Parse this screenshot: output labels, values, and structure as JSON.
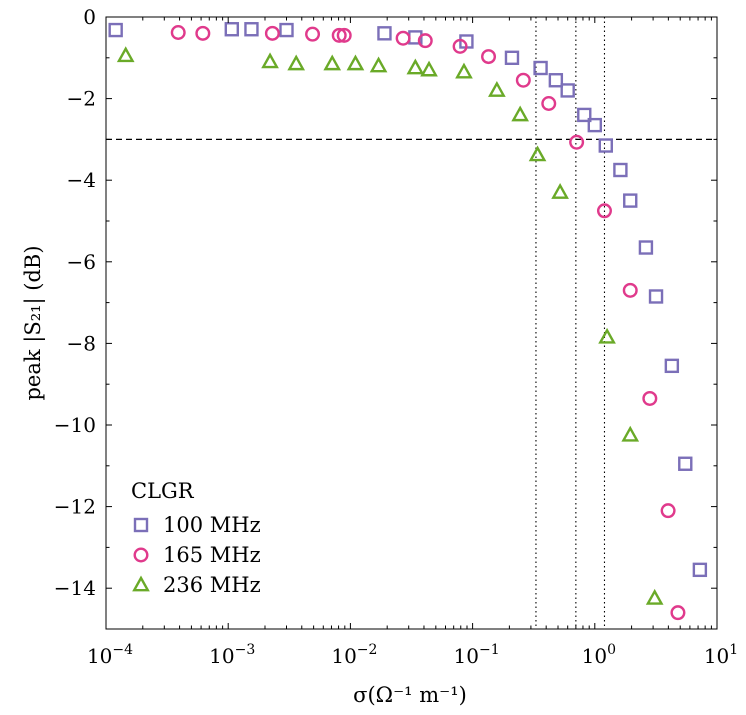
{
  "chart_data": {
    "type": "scatter",
    "title": "",
    "xlabel": "σ(Ω⁻¹ m⁻¹)",
    "ylabel": "peak |S₂₁| (dB)",
    "xscale": "log",
    "xlim": [
      0.0001,
      10
    ],
    "ylim": [
      -15,
      0
    ],
    "x_ticks": [
      {
        "value": 0.0001,
        "base": "10",
        "exp": "−4"
      },
      {
        "value": 0.001,
        "base": "10",
        "exp": "−3"
      },
      {
        "value": 0.01,
        "base": "10",
        "exp": "−2"
      },
      {
        "value": 0.1,
        "base": "10",
        "exp": "−1"
      },
      {
        "value": 1,
        "base": "10",
        "exp": "0"
      },
      {
        "value": 10,
        "base": "10",
        "exp": "1"
      }
    ],
    "y_ticks": [
      {
        "value": 0,
        "label": "0"
      },
      {
        "value": -2,
        "label": "−2"
      },
      {
        "value": -4,
        "label": "−4"
      },
      {
        "value": -6,
        "label": "−6"
      },
      {
        "value": -8,
        "label": "−8"
      },
      {
        "value": -10,
        "label": "−10"
      },
      {
        "value": -12,
        "label": "−12"
      },
      {
        "value": -14,
        "label": "−14"
      }
    ],
    "hlines": [
      {
        "y": -3,
        "style": "dashed"
      }
    ],
    "vlines": [
      {
        "x": 0.33,
        "style": "dotted"
      },
      {
        "x": 0.7,
        "style": "dotted"
      },
      {
        "x": 1.2,
        "style": "dotted"
      }
    ],
    "legend": {
      "title": "CLGR",
      "position": "bottom-left"
    },
    "series": [
      {
        "name": "100 MHz",
        "marker": "square",
        "color": "#7b6fb8",
        "points": [
          [
            0.00012,
            -0.32
          ],
          [
            0.00107,
            -0.3
          ],
          [
            0.00155,
            -0.3
          ],
          [
            0.003,
            -0.32
          ],
          [
            0.019,
            -0.4
          ],
          [
            0.034,
            -0.5
          ],
          [
            0.089,
            -0.6
          ],
          [
            0.21,
            -1.0
          ],
          [
            0.36,
            -1.25
          ],
          [
            0.48,
            -1.55
          ],
          [
            0.6,
            -1.8
          ],
          [
            0.82,
            -2.4
          ],
          [
            1.0,
            -2.65
          ],
          [
            1.23,
            -3.15
          ],
          [
            1.62,
            -3.75
          ],
          [
            1.95,
            -4.5
          ],
          [
            2.62,
            -5.65
          ],
          [
            3.17,
            -6.85
          ],
          [
            4.27,
            -8.55
          ],
          [
            5.5,
            -10.95
          ],
          [
            7.24,
            -13.55
          ]
        ]
      },
      {
        "name": "165 MHz",
        "marker": "circle",
        "color": "#e03a8c",
        "points": [
          [
            0.00039,
            -0.38
          ],
          [
            0.00062,
            -0.4
          ],
          [
            0.0023,
            -0.4
          ],
          [
            0.0049,
            -0.42
          ],
          [
            0.0081,
            -0.45
          ],
          [
            0.0089,
            -0.45
          ],
          [
            0.027,
            -0.52
          ],
          [
            0.041,
            -0.58
          ],
          [
            0.079,
            -0.72
          ],
          [
            0.135,
            -0.97
          ],
          [
            0.26,
            -1.55
          ],
          [
            0.42,
            -2.12
          ],
          [
            0.71,
            -3.07
          ],
          [
            1.2,
            -4.75
          ],
          [
            1.95,
            -6.7
          ],
          [
            2.82,
            -9.35
          ],
          [
            3.98,
            -12.1
          ],
          [
            4.79,
            -14.6
          ]
        ]
      },
      {
        "name": "236 MHz",
        "marker": "triangle",
        "color": "#6aaa28",
        "points": [
          [
            0.000145,
            -0.95
          ],
          [
            0.0022,
            -1.1
          ],
          [
            0.0036,
            -1.15
          ],
          [
            0.0071,
            -1.15
          ],
          [
            0.011,
            -1.15
          ],
          [
            0.017,
            -1.2
          ],
          [
            0.034,
            -1.25
          ],
          [
            0.044,
            -1.3
          ],
          [
            0.085,
            -1.35
          ],
          [
            0.158,
            -1.8
          ],
          [
            0.245,
            -2.4
          ],
          [
            0.34,
            -3.38
          ],
          [
            0.52,
            -4.3
          ],
          [
            1.26,
            -7.85
          ],
          [
            1.95,
            -10.25
          ],
          [
            3.09,
            -14.25
          ]
        ]
      }
    ]
  }
}
